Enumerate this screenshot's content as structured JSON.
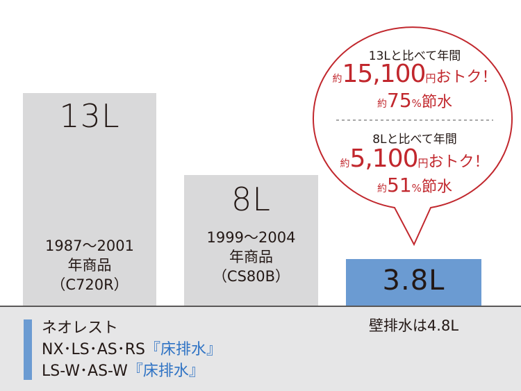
{
  "chart_data": {
    "type": "bar",
    "categories": [
      "13L",
      "8L",
      "3.8L"
    ],
    "values": [
      13,
      8,
      3.8
    ],
    "unit": "L",
    "bar_labels": [
      "13L",
      "8L",
      "3.8L"
    ],
    "bar_notes": [
      "1987～2001\n年商品\n（C720R）",
      "1999～2004\n年商品\n（CS80B）",
      "壁排水は4.8L"
    ],
    "colors": [
      "#d9d9da",
      "#d9d9da",
      "#6b9bd2"
    ],
    "ylim": [
      0,
      13
    ]
  },
  "legend": {
    "line1": "ネオレスト",
    "line2_prefix": "NX･LS･AS･RS",
    "line2_suffix": "『床排水』",
    "line3_prefix": "LS-W･AS-W",
    "line3_suffix": "『床排水』"
  },
  "callout": {
    "a": {
      "header": "13Lと比べて年間",
      "prefix": "約",
      "amount": "15,100",
      "yen": "円",
      "rest": "おトク！",
      "prefix2": "約",
      "pct": "75",
      "pct_unit": "%",
      "pct_rest": "節水"
    },
    "b": {
      "header": "8Lと比べて年間",
      "prefix": "約",
      "amount": "5,100",
      "yen": "円",
      "rest": "おトク！",
      "prefix2": "約",
      "pct": "51",
      "pct_unit": "%",
      "pct_rest": "節水"
    }
  },
  "colors": {
    "accent_red": "#c1272d",
    "accent_blue": "#6b9bd2",
    "legend_blue_text": "#2f73c4",
    "gray_bar": "#d9d9da",
    "band": "#e6e6e7"
  }
}
